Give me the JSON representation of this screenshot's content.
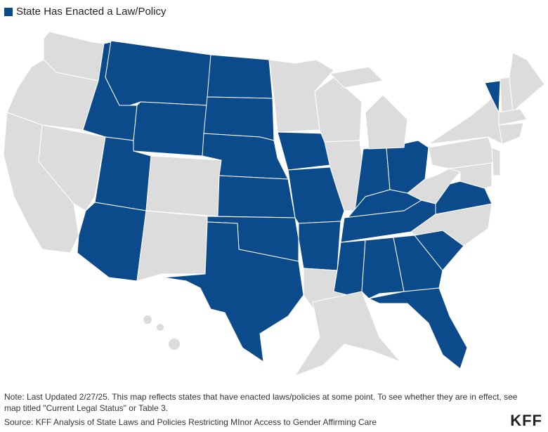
{
  "legend": {
    "label": "State Has Enacted a Law/Policy",
    "color": "#0b4a8b"
  },
  "map": {
    "enacted_color": "#0b4a8b",
    "other_color": "#dcdcdc",
    "enacted": [
      false,
      false,
      false,
      false,
      true,
      true,
      true,
      true,
      true,
      false,
      false,
      true,
      true,
      true,
      true,
      true,
      true,
      false,
      true,
      true,
      true,
      false,
      false,
      false,
      true,
      true,
      true,
      true,
      true,
      true,
      true,
      true,
      true,
      false,
      true,
      false,
      false,
      false,
      false,
      false,
      true,
      false,
      false,
      false,
      false,
      false,
      false,
      false
    ]
  },
  "note": "Note: Last Updated 2/27/25. This map reflects states that have enacted laws/policies at some point. To see whether they are in effect, see map titled \"Current Legal Status\" or Table 3.",
  "source": "Source: KFF Analysis of State Laws and Policies Restricting MInor Access to Gender Affirming Care",
  "logo": "KFF"
}
